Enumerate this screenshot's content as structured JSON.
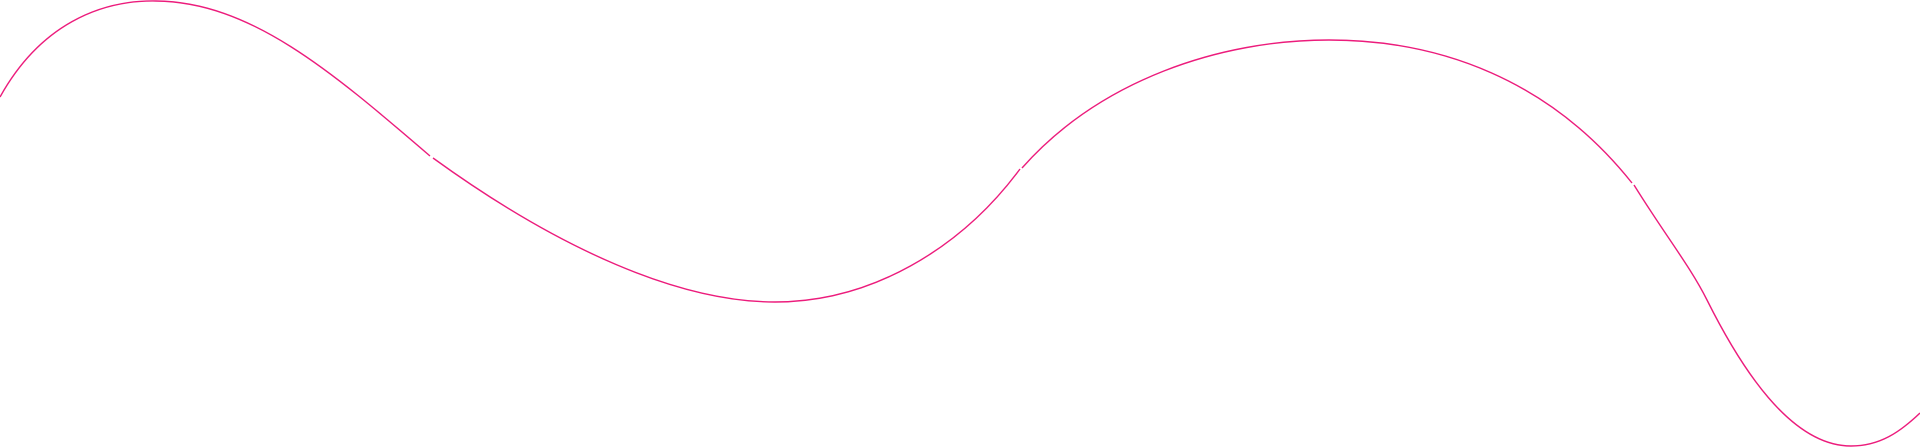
{
  "decoration": {
    "type": "wavy-line",
    "stroke_color": "#ec1c7c",
    "background_color": "#ffffff",
    "segment_count": 4
  }
}
